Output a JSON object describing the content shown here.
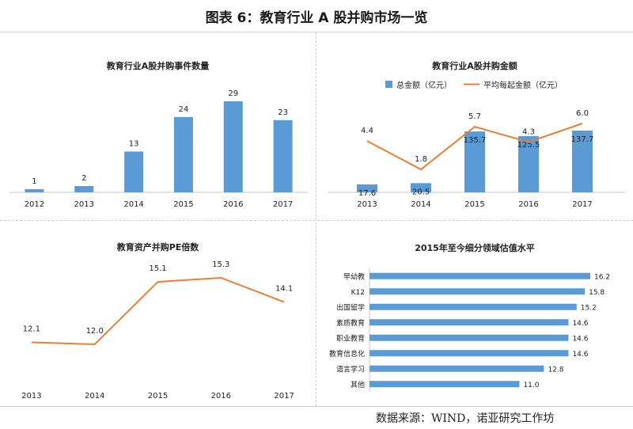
{
  "page": {
    "title": "图表 6：教育行业 A 股并购市场一览",
    "source": "数据来源：WIND，诺亚研究工作坊"
  },
  "colors": {
    "bar": "#5b9bd5",
    "line": "#ed7d31",
    "axis": "#c8c8c8"
  },
  "chart_data": [
    {
      "id": "events",
      "type": "bar",
      "title": "教育行业A股并购事件数量",
      "categories": [
        "2012",
        "2013",
        "2014",
        "2015",
        "2016",
        "2017"
      ],
      "values": [
        1,
        2,
        13,
        24,
        29,
        23
      ],
      "ylim": [
        0,
        29
      ]
    },
    {
      "id": "amount",
      "type": "bar",
      "title": "教育行业A股并购金额",
      "categories": [
        "2013",
        "2014",
        "2015",
        "2016",
        "2017"
      ],
      "series": [
        {
          "name": "总金额（亿元）",
          "type": "bar",
          "values": [
            17.6,
            20.5,
            135.7,
            125.5,
            137.7
          ]
        },
        {
          "name": "平均每起金额（亿元）",
          "type": "line",
          "values": [
            4.4,
            1.8,
            5.7,
            4.3,
            6.0
          ]
        }
      ],
      "legend": "top"
    },
    {
      "id": "pe",
      "type": "line",
      "title": "教育资产并购PE倍数",
      "categories": [
        "2013",
        "2014",
        "2015",
        "2016",
        "2017"
      ],
      "values": [
        12.1,
        12.0,
        15.1,
        15.3,
        14.1
      ]
    },
    {
      "id": "valuation",
      "type": "bar",
      "orientation": "horizontal",
      "title": "2015年至今细分领域估值水平",
      "categories": [
        "早幼教",
        "K12",
        "出国留学",
        "素质教育",
        "职业教育",
        "教育信息化",
        "语言学习",
        "其他"
      ],
      "values": [
        16.2,
        15.8,
        15.2,
        14.6,
        14.6,
        14.6,
        12.8,
        11.0
      ]
    }
  ]
}
